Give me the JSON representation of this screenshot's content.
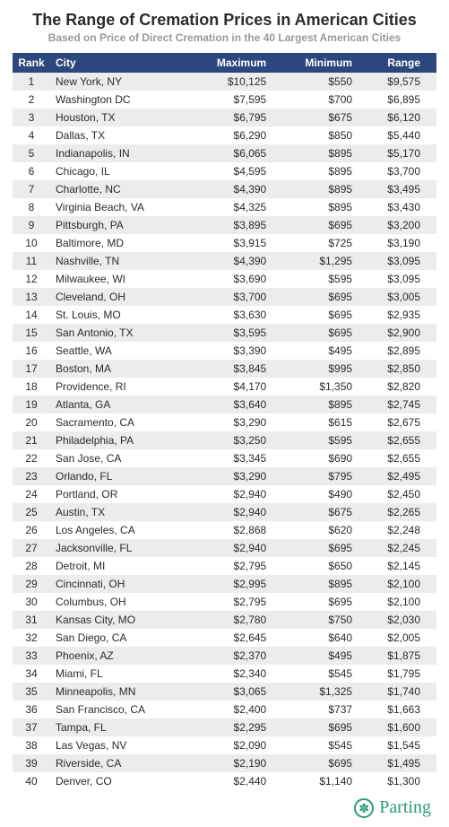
{
  "title": "The Range of Cremation Prices in American Cities",
  "subtitle": "Based on Price of Direct Cremation in the 40 Largest American Cities",
  "table": {
    "columns": [
      "Rank",
      "City",
      "Maximum",
      "Minimum",
      "Range"
    ],
    "header_bg": "#2b477d",
    "header_text_color": "#ffffff",
    "row_odd_bg": "#ececec",
    "row_even_bg": "#ffffff",
    "text_color": "#2b2b2b",
    "fontsize": 12,
    "column_align": [
      "center",
      "left",
      "right",
      "right",
      "right"
    ],
    "rows": [
      [
        1,
        "New York, NY",
        "$10,125",
        "$550",
        "$9,575"
      ],
      [
        2,
        "Washington DC",
        "$7,595",
        "$700",
        "$6,895"
      ],
      [
        3,
        "Houston, TX",
        "$6,795",
        "$675",
        "$6,120"
      ],
      [
        4,
        "Dallas, TX",
        "$6,290",
        "$850",
        "$5,440"
      ],
      [
        5,
        "Indianapolis, IN",
        "$6,065",
        "$895",
        "$5,170"
      ],
      [
        6,
        "Chicago, IL",
        "$4,595",
        "$895",
        "$3,700"
      ],
      [
        7,
        "Charlotte, NC",
        "$4,390",
        "$895",
        "$3,495"
      ],
      [
        8,
        "Virginia Beach, VA",
        "$4,325",
        "$895",
        "$3,430"
      ],
      [
        9,
        "Pittsburgh, PA",
        "$3,895",
        "$695",
        "$3,200"
      ],
      [
        10,
        "Baltimore, MD",
        "$3,915",
        "$725",
        "$3,190"
      ],
      [
        11,
        "Nashville, TN",
        "$4,390",
        "$1,295",
        "$3,095"
      ],
      [
        12,
        "Milwaukee, WI",
        "$3,690",
        "$595",
        "$3,095"
      ],
      [
        13,
        "Cleveland, OH",
        "$3,700",
        "$695",
        "$3,005"
      ],
      [
        14,
        "St. Louis, MO",
        "$3,630",
        "$695",
        "$2,935"
      ],
      [
        15,
        "San Antonio, TX",
        "$3,595",
        "$695",
        "$2,900"
      ],
      [
        16,
        "Seattle, WA",
        "$3,390",
        "$495",
        "$2,895"
      ],
      [
        17,
        "Boston, MA",
        "$3,845",
        "$995",
        "$2,850"
      ],
      [
        18,
        "Providence, RI",
        "$4,170",
        "$1,350",
        "$2,820"
      ],
      [
        19,
        "Atlanta, GA",
        "$3,640",
        "$895",
        "$2,745"
      ],
      [
        20,
        "Sacramento, CA",
        "$3,290",
        "$615",
        "$2,675"
      ],
      [
        21,
        "Philadelphia, PA",
        "$3,250",
        "$595",
        "$2,655"
      ],
      [
        22,
        "San Jose, CA",
        "$3,345",
        "$690",
        "$2,655"
      ],
      [
        23,
        "Orlando, FL",
        "$3,290",
        "$795",
        "$2,495"
      ],
      [
        24,
        "Portland, OR",
        "$2,940",
        "$490",
        "$2,450"
      ],
      [
        25,
        "Austin, TX",
        "$2,940",
        "$675",
        "$2,265"
      ],
      [
        26,
        "Los Angeles, CA",
        "$2,868",
        "$620",
        "$2,248"
      ],
      [
        27,
        "Jacksonville, FL",
        "$2,940",
        "$695",
        "$2,245"
      ],
      [
        28,
        "Detroit, MI",
        "$2,795",
        "$650",
        "$2,145"
      ],
      [
        29,
        "Cincinnati, OH",
        "$2,995",
        "$895",
        "$2,100"
      ],
      [
        30,
        "Columbus, OH",
        "$2,795",
        "$695",
        "$2,100"
      ],
      [
        31,
        "Kansas City, MO",
        "$2,780",
        "$750",
        "$2,030"
      ],
      [
        32,
        "San Diego, CA",
        "$2,645",
        "$640",
        "$2,005"
      ],
      [
        33,
        "Phoenix, AZ",
        "$2,370",
        "$495",
        "$1,875"
      ],
      [
        34,
        "Miami, FL",
        "$2,340",
        "$545",
        "$1,795"
      ],
      [
        35,
        "Minneapolis, MN",
        "$3,065",
        "$1,325",
        "$1,740"
      ],
      [
        36,
        "San Francisco, CA",
        "$2,400",
        "$737",
        "$1,663"
      ],
      [
        37,
        "Tampa, FL",
        "$2,295",
        "$695",
        "$1,600"
      ],
      [
        38,
        "Las Vegas, NV",
        "$2,090",
        "$545",
        "$1,545"
      ],
      [
        39,
        "Riverside, CA",
        "$2,190",
        "$695",
        "$1,495"
      ],
      [
        40,
        "Denver, CO",
        "$2,440",
        "$1,140",
        "$1,300"
      ]
    ]
  },
  "footer": {
    "logo_text": "Parting",
    "logo_color": "#2a9d6f",
    "logo_icon_glyph": "✽"
  },
  "colors": {
    "title_color": "#2b2b2b",
    "subtitle_color": "#999999",
    "background": "#ffffff"
  },
  "typography": {
    "title_fontsize": 18,
    "subtitle_fontsize": 12,
    "body_fontsize": 12,
    "logo_fontsize": 20
  }
}
